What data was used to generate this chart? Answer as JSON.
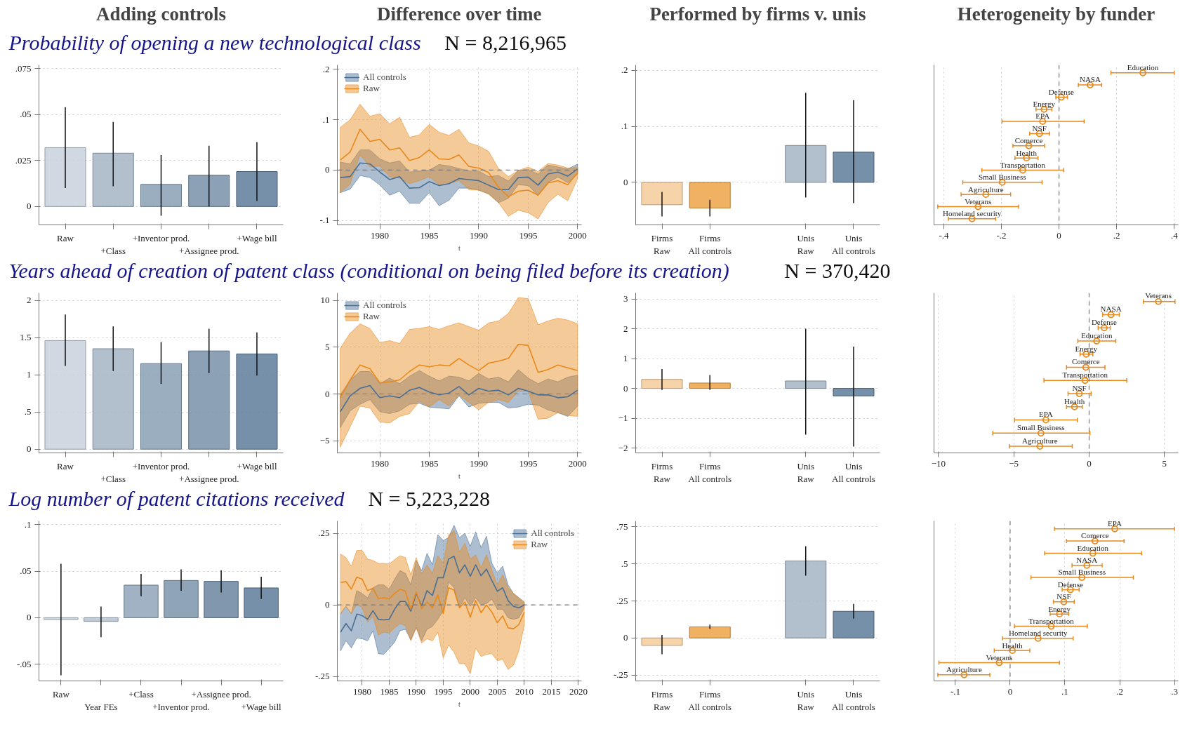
{
  "chart_data": [
    {
      "type": "bar",
      "title": "Adding controls",
      "subtitle": "Probability of opening a new technological class",
      "annotations": [
        "N = 8,216,965"
      ],
      "categories": [
        "Raw",
        "+Class",
        "+Inventor prod.",
        "+Assignee prod.",
        "+Wage bill"
      ],
      "values": [
        0.032,
        0.029,
        0.012,
        0.017,
        0.019
      ],
      "errors": [
        [
          0.01,
          0.054
        ],
        [
          0.011,
          0.046
        ],
        [
          -0.005,
          0.028
        ],
        [
          0.0,
          0.033
        ],
        [
          0.003,
          0.035
        ]
      ],
      "colors": [
        "#c8d2dc",
        "#a5b5c6",
        "#8aa0b5",
        "#7890a8",
        "#5f7d9b"
      ],
      "ylim": [
        -0.01,
        0.077
      ],
      "yticks": [
        0,
        {
          "value": 0.025,
          "label": ".025"
        },
        {
          "value": 0.05,
          "label": ".05"
        },
        {
          "value": 0.075,
          "label": ".075"
        }
      ],
      "grid": "y"
    },
    {
      "type": "line",
      "title": "Difference over time",
      "xlabel": "t",
      "x": [
        1976,
        1977,
        1978,
        1979,
        1980,
        1981,
        1982,
        1983,
        1984,
        1985,
        1986,
        1987,
        1988,
        1989,
        1990,
        1991,
        1992,
        1993,
        1994,
        1995,
        1996,
        1997,
        1998,
        1999,
        2000
      ],
      "series": [
        {
          "name": "All controls",
          "color": "#4a6f96",
          "values": [
            -0.015,
            -0.013,
            0.014,
            0.012,
            -0.004,
            -0.019,
            -0.013,
            -0.036,
            -0.035,
            -0.023,
            -0.031,
            -0.027,
            -0.017,
            -0.019,
            -0.021,
            -0.03,
            -0.039,
            -0.039,
            -0.015,
            -0.014,
            -0.03,
            -0.008,
            -0.004,
            -0.012,
            0.002
          ],
          "lower": [
            -0.045,
            -0.038,
            -0.011,
            -0.015,
            -0.03,
            -0.05,
            -0.042,
            -0.066,
            -0.066,
            -0.045,
            -0.071,
            -0.06,
            -0.036,
            -0.036,
            -0.04,
            -0.047,
            -0.065,
            -0.056,
            -0.029,
            -0.031,
            -0.05,
            -0.025,
            -0.014,
            -0.025,
            -0.008
          ],
          "upper": [
            0.016,
            0.012,
            0.04,
            0.04,
            0.022,
            0.014,
            0.018,
            -0.004,
            -0.002,
            0.0,
            0.011,
            0.008,
            0.003,
            -0.002,
            -0.002,
            -0.013,
            -0.011,
            -0.022,
            -0.001,
            0.001,
            -0.008,
            0.01,
            0.006,
            0.002,
            0.012
          ]
        },
        {
          "name": "Raw",
          "color": "#e8891c",
          "values": [
            0.02,
            0.036,
            0.081,
            0.057,
            0.061,
            0.04,
            0.044,
            0.019,
            0.025,
            0.04,
            0.022,
            0.021,
            0.03,
            0.007,
            0.004,
            -0.005,
            -0.034,
            -0.053,
            -0.042,
            -0.04,
            -0.05,
            -0.026,
            -0.021,
            -0.029,
            -0.005
          ],
          "lower": [
            -0.045,
            -0.028,
            0.03,
            0.006,
            0.008,
            -0.013,
            -0.016,
            -0.027,
            -0.021,
            -0.013,
            -0.03,
            -0.027,
            -0.021,
            -0.039,
            -0.04,
            -0.048,
            -0.065,
            -0.092,
            -0.08,
            -0.085,
            -0.097,
            -0.065,
            -0.048,
            -0.061,
            -0.017
          ],
          "upper": [
            0.085,
            0.1,
            0.131,
            0.107,
            0.112,
            0.092,
            0.105,
            0.065,
            0.07,
            0.091,
            0.075,
            0.069,
            0.081,
            0.054,
            0.048,
            0.037,
            0.003,
            -0.013,
            -0.001,
            0.006,
            -0.003,
            0.013,
            0.01,
            0.004,
            0.005
          ]
        }
      ],
      "xlim": [
        1975.7,
        2000.4
      ],
      "xticks": [
        1980,
        1985,
        1990,
        1995,
        2000
      ],
      "ylim": [
        -0.109,
        0.209
      ],
      "yticks": [
        {
          "value": -0.1,
          "label": "-.1"
        },
        0,
        {
          "value": 0.1,
          "label": ".1"
        },
        {
          "value": 0.2,
          "label": ".2"
        }
      ],
      "legend": "top left",
      "grid": true,
      "ref_lines": [
        {
          "axis": "y",
          "value": 0,
          "line_style": "dashed"
        }
      ]
    },
    {
      "type": "bar",
      "title": "Performed by firms v. unis",
      "categories": [
        "Firms\nRaw",
        "Firms\nAll controls",
        null,
        "Unis\nRaw",
        "Unis\nAll controls"
      ],
      "values": [
        -0.04,
        -0.046,
        null,
        0.066,
        0.054
      ],
      "errors": [
        [
          -0.061,
          -0.017
        ],
        [
          -0.061,
          -0.031
        ],
        null,
        [
          -0.027,
          0.16
        ],
        [
          -0.037,
          0.147
        ]
      ],
      "colors": [
        "#f5cb9a",
        "#eda547",
        "#ffffff",
        "#a5b5c6",
        "#5f7d9b"
      ],
      "ylim": [
        -0.076,
        0.21
      ],
      "yticks": [
        0,
        {
          "value": 0.1,
          "label": ".1"
        },
        {
          "value": 0.2,
          "label": ".2"
        }
      ],
      "grid": "y"
    },
    {
      "type": "scatter",
      "orientation": "horizontal",
      "title": "Heterogeneity by funder",
      "categories": [
        "Education",
        "NASA",
        "Defense",
        "Energy",
        "EPA",
        "NSF",
        "Comerce",
        "Health",
        "Transportation",
        "Small Business",
        "Agriculture",
        "Veterans",
        "Homeland security"
      ],
      "series": [
        {
          "color": "#e8891c",
          "values": [
            0.291,
            0.108,
            0.008,
            -0.052,
            -0.057,
            -0.068,
            -0.105,
            -0.113,
            -0.126,
            -0.197,
            -0.254,
            -0.281,
            -0.302
          ],
          "errors": [
            [
              0.18,
              0.4
            ],
            [
              0.067,
              0.148
            ],
            [
              -0.011,
              0.029
            ],
            [
              -0.08,
              -0.025
            ],
            [
              -0.198,
              0.087
            ],
            [
              -0.102,
              -0.033
            ],
            [
              -0.16,
              -0.05
            ],
            [
              -0.153,
              -0.073
            ],
            [
              -0.268,
              0.016
            ],
            [
              -0.334,
              -0.059
            ],
            [
              -0.34,
              -0.168
            ],
            [
              -0.421,
              -0.14
            ],
            [
              -0.384,
              -0.22
            ]
          ]
        }
      ],
      "marker": "circle",
      "xlim": [
        -0.434,
        0.414
      ],
      "xticks": [
        {
          "value": -0.4,
          "label": "-.4"
        },
        {
          "value": -0.2,
          "label": "-.2"
        },
        0,
        {
          "value": 0.2,
          "label": ".2"
        },
        {
          "value": 0.4,
          "label": ".4"
        }
      ],
      "tick_labels": "x",
      "grid": "x",
      "ref_lines": [
        {
          "axis": "x",
          "value": 0,
          "line_style": "dashed"
        }
      ]
    },
    {
      "type": "bar",
      "subtitle": "Years ahead of creation of patent class (conditional on being filed before its creation)",
      "annotations": [
        "N = 370,420"
      ],
      "categories": [
        "Raw",
        "+Class",
        "+Inventor prod.",
        "+Assignee prod.",
        "+Wage bill"
      ],
      "values": [
        1.46,
        1.35,
        1.15,
        1.32,
        1.28
      ],
      "errors": [
        [
          1.12,
          1.81
        ],
        [
          1.05,
          1.65
        ],
        [
          0.88,
          1.44
        ],
        [
          1.02,
          1.62
        ],
        [
          0.99,
          1.57
        ]
      ],
      "colors": [
        "#c8d2dc",
        "#a5b5c6",
        "#8aa0b5",
        "#7890a8",
        "#5f7d9b"
      ],
      "ylim": [
        -0.05,
        2.1
      ],
      "yticks": [
        0,
        {
          "value": 0.5,
          "label": ".5"
        },
        1,
        1.5,
        2
      ],
      "grid": "y"
    },
    {
      "type": "line",
      "xlabel": "t",
      "x": [
        1976,
        1977,
        1978,
        1979,
        1980,
        1981,
        1982,
        1983,
        1984,
        1985,
        1986,
        1987,
        1988,
        1989,
        1990,
        1991,
        1992,
        1993,
        1994,
        1995,
        1996,
        1997,
        1998,
        1999,
        2000
      ],
      "series": [
        {
          "name": "All controls",
          "color": "#4a6f96",
          "values": [
            -1.9,
            -0.2,
            0.6,
            0.9,
            -0.4,
            -0.2,
            -0.4,
            0.4,
            0.7,
            0.2,
            -0.1,
            0.1,
            0.8,
            -0.1,
            0.6,
            0.3,
            0.4,
            -0.1,
            0.6,
            0.3,
            -0.1,
            -0.1,
            -0.4,
            -0.3,
            0.4
          ],
          "lower": [
            -3.6,
            -1.8,
            -1.1,
            -0.6,
            -1.9,
            -2.1,
            -1.8,
            -1.1,
            -1.0,
            -1.4,
            -1.5,
            -1.6,
            -0.2,
            -1.4,
            -1.0,
            -0.9,
            -0.9,
            -1.5,
            -1.4,
            -1.1,
            -1.2,
            -1.7,
            -2.0,
            -2.4,
            -1.3
          ],
          "upper": [
            -0.1,
            1.5,
            2.4,
            2.4,
            1.1,
            1.7,
            1.1,
            1.9,
            2.5,
            1.9,
            1.4,
            1.9,
            1.8,
            1.4,
            2.2,
            1.6,
            1.8,
            1.3,
            2.6,
            1.7,
            1.1,
            1.6,
            1.3,
            1.8,
            2.0
          ]
        },
        {
          "name": "Raw",
          "color": "#e8891c",
          "values": [
            -0.4,
            1.5,
            3.1,
            2.7,
            1.2,
            1.3,
            1.5,
            2.4,
            3.1,
            2.9,
            3.1,
            3.0,
            3.8,
            3.1,
            2.5,
            3.3,
            3.5,
            3.8,
            5.3,
            5.2,
            2.3,
            2.6,
            3.1,
            2.8,
            2.5
          ],
          "lower": [
            -5.7,
            -3.5,
            -1.3,
            -1.5,
            -3.0,
            -3.1,
            -2.4,
            -2.1,
            -0.8,
            -1.4,
            -0.6,
            -1.3,
            -0.1,
            -0.9,
            -1.7,
            -0.9,
            -0.6,
            -0.9,
            0.3,
            0.3,
            -2.7,
            -2.6,
            -2.0,
            -2.3,
            -2.4
          ],
          "upper": [
            4.9,
            6.5,
            7.5,
            7.0,
            5.5,
            5.7,
            5.4,
            6.9,
            7.0,
            7.2,
            6.9,
            7.3,
            7.6,
            7.2,
            6.8,
            7.6,
            7.8,
            8.6,
            10.3,
            10.2,
            7.4,
            7.8,
            8.1,
            7.9,
            7.5
          ]
        }
      ],
      "xlim": [
        1975.7,
        2000.4
      ],
      "xticks": [
        1980,
        1985,
        1990,
        1995,
        2000
      ],
      "ylim": [
        -6.3,
        10.8
      ],
      "yticks": [
        -5,
        0,
        5,
        10
      ],
      "legend": "top left",
      "grid": true,
      "ref_lines": [
        {
          "axis": "y",
          "value": 0,
          "line_style": "dashed"
        }
      ]
    },
    {
      "type": "bar",
      "categories": [
        "Firms\nRaw",
        "Firms\nAll controls",
        null,
        "Unis\nRaw",
        "Unis\nAll controls"
      ],
      "values": [
        0.3,
        0.18,
        null,
        0.25,
        -0.25
      ],
      "errors": [
        [
          -0.05,
          0.65
        ],
        [
          -0.05,
          0.45
        ],
        null,
        [
          -1.55,
          2.0
        ],
        [
          -1.95,
          1.4
        ]
      ],
      "colors": [
        "#f5cb9a",
        "#eda547",
        "#ffffff",
        "#a5b5c6",
        "#5f7d9b"
      ],
      "ylim": [
        -2.16,
        3.2
      ],
      "yticks": [
        -2,
        -1,
        0,
        1,
        2,
        3
      ],
      "grid": "y"
    },
    {
      "type": "scatter",
      "orientation": "horizontal",
      "categories": [
        "Veterans",
        "NASA",
        "Defense",
        "Education",
        "Energy",
        "Comerce",
        "Transportation",
        "NSF",
        "Health",
        "EPA",
        "Small Business",
        "Agriculture"
      ],
      "series": [
        {
          "color": "#e8891c",
          "values": [
            4.6,
            1.45,
            1.0,
            0.5,
            -0.2,
            -0.22,
            -0.27,
            -0.65,
            -0.97,
            -2.87,
            -3.2,
            -3.27
          ],
          "errors": [
            [
              3.6,
              5.7
            ],
            [
              0.9,
              2.0
            ],
            [
              0.6,
              1.4
            ],
            [
              -0.75,
              1.77
            ],
            [
              -0.6,
              0.25
            ],
            [
              -1.5,
              1.05
            ],
            [
              -3.0,
              2.5
            ],
            [
              -1.4,
              0.13
            ],
            [
              -1.5,
              -0.45
            ],
            [
              -4.95,
              -0.78
            ],
            [
              -6.4,
              0.05
            ],
            [
              -5.3,
              -1.12
            ]
          ]
        }
      ],
      "marker": "circle",
      "xlim": [
        -10.3,
        5.92
      ],
      "xticks": [
        -10,
        -5,
        0,
        5
      ],
      "tick_labels": "x",
      "grid": "x",
      "ref_lines": [
        {
          "axis": "x",
          "value": 0,
          "line_style": "dashed"
        }
      ]
    },
    {
      "type": "bar",
      "subtitle": "Log number of patent citations received",
      "annotations": [
        "N = 5,223,228"
      ],
      "categories": [
        "Raw",
        "Year FEs",
        "+Class",
        "+Inventor prod.",
        "+Assignee prod.",
        "+Wage bill"
      ],
      "values": [
        -0.002,
        -0.004,
        0.035,
        0.04,
        0.039,
        0.032
      ],
      "errors": [
        [
          -0.062,
          0.058
        ],
        [
          -0.021,
          0.012
        ],
        [
          0.023,
          0.047
        ],
        [
          0.029,
          0.052
        ],
        [
          0.027,
          0.051
        ],
        [
          0.02,
          0.044
        ]
      ],
      "colors": [
        "#c8d2dc",
        "#b4c2d0",
        "#8fa4b9",
        "#7d94ac",
        "#6a85a0",
        "#5f7d9b"
      ],
      "ylim": [
        -0.068,
        0.104
      ],
      "yticks": [
        {
          "value": -0.05,
          "label": "-.05"
        },
        0,
        {
          "value": 0.05,
          "label": ".05"
        },
        {
          "value": 0.1,
          "label": ".1"
        }
      ],
      "grid": "y"
    },
    {
      "type": "line",
      "xlabel": "t",
      "x": [
        1976,
        1977,
        1978,
        1979,
        1980,
        1981,
        1982,
        1983,
        1984,
        1985,
        1986,
        1987,
        1988,
        1989,
        1990,
        1991,
        1992,
        1993,
        1994,
        1995,
        1996,
        1997,
        1998,
        1999,
        2000,
        2001,
        2002,
        2003,
        2004,
        2005,
        2006,
        2007,
        2008,
        2009,
        2010
      ],
      "series": [
        {
          "name": "All controls",
          "color": "#4a6f96",
          "values": [
            -0.095,
            -0.065,
            -0.09,
            -0.032,
            -0.037,
            -0.05,
            -0.02,
            -0.05,
            -0.052,
            -0.05,
            -0.015,
            0.012,
            0.012,
            -0.022,
            0.04,
            -0.003,
            0.05,
            0.033,
            0.095,
            0.095,
            0.16,
            0.17,
            0.112,
            0.14,
            0.1,
            0.14,
            0.102,
            0.125,
            0.085,
            0.048,
            0.06,
            0.015,
            -0.005,
            -0.01,
            0.0
          ],
          "lower": [
            -0.16,
            -0.125,
            -0.15,
            -0.115,
            -0.118,
            -0.125,
            -0.09,
            -0.17,
            -0.172,
            -0.152,
            -0.13,
            -0.09,
            -0.085,
            -0.122,
            -0.078,
            -0.125,
            -0.085,
            -0.075,
            -0.05,
            -0.02,
            0.08,
            0.06,
            -0.01,
            0.025,
            -0.005,
            0.025,
            0.0,
            0.005,
            0.02,
            -0.015,
            -0.015,
            -0.045,
            -0.05,
            -0.045,
            -0.01
          ],
          "upper": [
            -0.03,
            -0.005,
            -0.03,
            0.05,
            0.04,
            0.025,
            0.06,
            0.07,
            0.07,
            0.055,
            0.09,
            0.12,
            0.11,
            0.07,
            0.155,
            0.12,
            0.18,
            0.14,
            0.245,
            0.225,
            0.235,
            0.278,
            0.235,
            0.25,
            0.205,
            0.255,
            0.2,
            0.24,
            0.145,
            0.112,
            0.135,
            0.07,
            0.04,
            0.025,
            0.01
          ]
        },
        {
          "name": "Raw",
          "color": "#e8891c",
          "values": [
            0.078,
            0.082,
            0.055,
            0.097,
            0.09,
            0.05,
            0.058,
            0.022,
            0.025,
            0.022,
            0.04,
            0.055,
            0.048,
            -0.015,
            0.046,
            -0.013,
            0.01,
            -0.01,
            0.035,
            -0.03,
            0.06,
            0.052,
            -0.01,
            0.01,
            -0.043,
            0.015,
            -0.027,
            0.0,
            -0.025,
            -0.062,
            -0.038,
            -0.08,
            -0.083,
            -0.068,
            -0.025
          ],
          "lower": [
            -0.03,
            -0.005,
            -0.03,
            0.003,
            -0.01,
            -0.06,
            -0.04,
            -0.105,
            -0.095,
            -0.098,
            -0.08,
            -0.065,
            -0.072,
            -0.125,
            -0.08,
            -0.133,
            -0.118,
            -0.125,
            -0.095,
            -0.185,
            -0.14,
            -0.165,
            -0.205,
            -0.205,
            -0.24,
            -0.15,
            -0.18,
            -0.172,
            -0.17,
            -0.195,
            -0.19,
            -0.225,
            -0.21,
            -0.16,
            -0.07
          ],
          "upper": [
            0.178,
            0.165,
            0.135,
            0.19,
            0.19,
            0.16,
            0.155,
            0.145,
            0.145,
            0.143,
            0.158,
            0.172,
            0.165,
            0.105,
            0.165,
            0.108,
            0.14,
            0.11,
            0.172,
            0.145,
            0.245,
            0.26,
            0.185,
            0.215,
            0.16,
            0.175,
            0.13,
            0.175,
            0.12,
            0.07,
            0.105,
            0.06,
            0.04,
            0.025,
            0.01
          ]
        }
      ],
      "xlim": [
        1975.4,
        2020.6
      ],
      "xticks": [
        1980,
        1985,
        1990,
        1995,
        2000,
        2005,
        2010,
        2015,
        2020
      ],
      "ylim": [
        -0.265,
        0.293
      ],
      "yticks": [
        {
          "value": -0.25,
          "label": "-.25"
        },
        0,
        {
          "value": 0.25,
          "label": ".25"
        }
      ],
      "legend": "top right",
      "grid": true,
      "ref_lines": [
        {
          "axis": "y",
          "value": 0,
          "line_style": "dashed"
        }
      ]
    },
    {
      "type": "bar",
      "categories": [
        "Firms\nRaw",
        "Firms\nAll controls",
        null,
        "Unis\nRaw",
        "Unis\nAll controls"
      ],
      "values": [
        -0.05,
        0.075,
        null,
        0.52,
        0.18
      ],
      "errors": [
        [
          -0.11,
          0.02
        ],
        [
          0.06,
          0.09
        ],
        null,
        [
          0.42,
          0.62
        ],
        [
          0.13,
          0.23
        ]
      ],
      "colors": [
        "#f5cb9a",
        "#eda547",
        "#ffffff",
        "#a5b5c6",
        "#5f7d9b"
      ],
      "ylim": [
        -0.29,
        0.79
      ],
      "yticks": [
        {
          "value": -0.25,
          "label": "-.25"
        },
        0,
        {
          "value": 0.25,
          "label": ".25"
        },
        {
          "value": 0.5,
          "label": ".5"
        },
        {
          "value": 0.75,
          "label": ".75"
        }
      ],
      "grid": "y"
    },
    {
      "type": "scatter",
      "orientation": "horizontal",
      "categories": [
        "EPA",
        "Comerce",
        "Education",
        "NASA",
        "Small Business",
        "Defense",
        "NSF",
        "Energy",
        "Transportation",
        "Homeland security",
        "Health",
        "Veterans",
        "Agriculture"
      ],
      "series": [
        {
          "color": "#e8891c",
          "values": [
            0.191,
            0.155,
            0.151,
            0.14,
            0.131,
            0.11,
            0.098,
            0.09,
            0.075,
            0.051,
            0.004,
            -0.02,
            -0.084
          ],
          "errors": [
            [
              0.081,
              0.3
            ],
            [
              0.103,
              0.208
            ],
            [
              0.063,
              0.24
            ],
            [
              0.113,
              0.168
            ],
            [
              0.038,
              0.225
            ],
            [
              0.095,
              0.126
            ],
            [
              0.079,
              0.117
            ],
            [
              0.073,
              0.107
            ],
            [
              0.008,
              0.141
            ],
            [
              -0.014,
              0.115
            ],
            [
              -0.029,
              0.036
            ],
            [
              -0.13,
              0.09
            ],
            [
              -0.132,
              -0.037
            ]
          ]
        }
      ],
      "marker": "circle",
      "xlim": [
        -0.139,
        0.307
      ],
      "xticks": [
        {
          "value": -0.1,
          "label": "-.1"
        },
        0,
        {
          "value": 0.1,
          "label": ".1"
        },
        {
          "value": 0.2,
          "label": ".2"
        },
        {
          "value": 0.3,
          "label": ".3"
        }
      ],
      "tick_labels": "x",
      "grid": "x",
      "ref_lines": [
        {
          "axis": "x",
          "value": 0,
          "line_style": "dashed"
        }
      ]
    }
  ]
}
